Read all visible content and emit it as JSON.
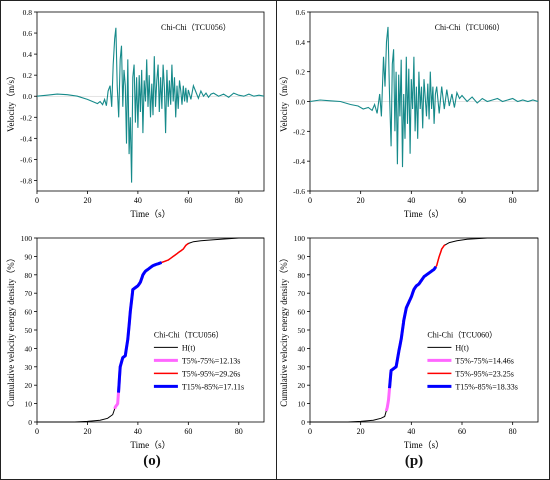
{
  "figure": {
    "panel_labels": {
      "left": "(o)",
      "right": "(p)"
    }
  },
  "chart_data": [
    {
      "id": "vel-tcu056",
      "type": "line",
      "title": "Chi-Chi（TCU056）",
      "xlabel": "Time（s）",
      "ylabel": "Velocity（m/s）",
      "xlim": [
        0,
        90
      ],
      "ylim": [
        -0.9,
        0.8
      ],
      "xticks": [
        0,
        20,
        40,
        60,
        80
      ],
      "yticks": [
        -0.8,
        -0.6,
        -0.4,
        -0.2,
        0.0,
        0.2,
        0.4,
        0.6,
        0.8
      ],
      "ytick_labels": [
        "-0.8",
        "-0.6",
        "-0.4",
        "-0.2",
        "0.0",
        "0.2",
        "0.4",
        "0.6",
        "0.8"
      ],
      "color": "#168a8a",
      "series": [
        {
          "x": [
            0,
            4,
            8,
            12,
            16,
            20,
            22,
            24,
            25,
            26,
            26.8,
            27.5,
            28.2,
            29,
            29.6,
            30.2,
            30.8,
            31.3,
            31.8,
            32.4,
            33,
            33.5,
            34,
            34.5,
            35,
            35.5,
            36,
            36.5,
            37,
            37.5,
            38,
            38.5,
            39,
            39.5,
            40,
            40.5,
            41,
            41.5,
            42,
            42.5,
            43,
            43.5,
            44,
            44.5,
            45,
            45.5,
            46,
            46.5,
            47,
            47.5,
            48,
            48.5,
            49,
            49.5,
            50,
            50.5,
            51,
            51.5,
            52,
            52.5,
            53,
            53.5,
            54,
            54.5,
            55,
            55.5,
            56,
            56.5,
            57,
            57.5,
            58,
            58.5,
            59,
            59.5,
            60,
            61,
            62,
            63,
            64,
            65,
            66,
            67,
            68,
            69,
            70,
            72,
            74,
            76,
            78,
            80,
            82,
            84,
            86,
            88,
            90
          ],
          "y": [
            0,
            0.01,
            0.02,
            0.015,
            0,
            -0.03,
            -0.05,
            -0.07,
            -0.05,
            -0.08,
            -0.03,
            -0.09,
            0.05,
            0.1,
            -0.1,
            0.3,
            0.55,
            0.65,
            0.1,
            -0.2,
            0.35,
            0.48,
            -0.1,
            0.25,
            0.1,
            -0.45,
            0.35,
            -0.55,
            -0.2,
            -0.82,
            0.18,
            0.3,
            -0.25,
            0.18,
            -0.3,
            0.2,
            -0.15,
            0.25,
            -0.35,
            0.15,
            -0.05,
            0.35,
            -0.1,
            0.2,
            -0.2,
            0.12,
            -0.18,
            0.38,
            -0.1,
            0.15,
            0.3,
            -0.15,
            0.18,
            -0.12,
            0.3,
            0.08,
            -0.35,
            0.25,
            -0.1,
            0.15,
            -0.08,
            0.3,
            -0.05,
            0.18,
            -0.2,
            0.1,
            -0.12,
            0.15,
            0.05,
            -0.08,
            0.1,
            -0.05,
            0.08,
            -0.06,
            0.06,
            -0.03,
            0.1,
            0.04,
            -0.02,
            0.05,
            0,
            0.03,
            -0.01,
            0.02,
            0.03,
            0,
            0.02,
            -0.01,
            0.03,
            0.01,
            0,
            0.02,
            0,
            0.01,
            0
          ]
        }
      ]
    },
    {
      "id": "vel-tcu060",
      "type": "line",
      "title": "Chi-Chi（TCU060）",
      "xlabel": "Time（s）",
      "ylabel": "Velocity（m/s）",
      "xlim": [
        0,
        90
      ],
      "ylim": [
        -0.6,
        0.6
      ],
      "xticks": [
        0,
        20,
        40,
        60,
        80
      ],
      "yticks": [
        -0.6,
        -0.4,
        -0.2,
        0.0,
        0.2,
        0.4,
        0.6
      ],
      "ytick_labels": [
        "-0.6",
        "-0.4",
        "-0.2",
        "0.0",
        "0.2",
        "0.4",
        "0.6"
      ],
      "color": "#168a8a",
      "series": [
        {
          "x": [
            0,
            4,
            8,
            12,
            16,
            19,
            21,
            23,
            24.5,
            25.5,
            26.5,
            27.5,
            28.2,
            29,
            29.6,
            30.2,
            30.8,
            31.4,
            32,
            32.5,
            33,
            33.5,
            34,
            34.5,
            35,
            35.5,
            36,
            36.5,
            37,
            37.5,
            38,
            38.5,
            39,
            39.5,
            40,
            40.5,
            41,
            41.5,
            42,
            42.5,
            43,
            43.5,
            44,
            44.5,
            45,
            45.5,
            46,
            46.5,
            47,
            47.5,
            48,
            48.5,
            49,
            49.5,
            50,
            51,
            52,
            53,
            54,
            55,
            56,
            57,
            58,
            59,
            60,
            62,
            64,
            66,
            68,
            70,
            72,
            74,
            76,
            78,
            80,
            82,
            84,
            86,
            88,
            90
          ],
          "y": [
            0,
            0.01,
            0.005,
            0,
            -0.02,
            -0.03,
            -0.05,
            -0.04,
            -0.06,
            -0.02,
            -0.08,
            0.05,
            -0.1,
            0.3,
            0.1,
            0.4,
            0.5,
            0.05,
            -0.3,
            0.25,
            0.35,
            -0.2,
            0.2,
            -0.42,
            0.18,
            -0.1,
            0.28,
            -0.44,
            0.05,
            -0.25,
            0.3,
            -0.15,
            0.22,
            -0.35,
            0.15,
            -0.05,
            0.3,
            -0.2,
            0.1,
            -0.25,
            0.2,
            -0.05,
            0.1,
            -0.18,
            0.15,
            0.02,
            -0.1,
            0.12,
            -0.12,
            0.2,
            -0.05,
            0.1,
            -0.15,
            0.05,
            0.1,
            -0.08,
            0.1,
            -0.05,
            0.08,
            -0.03,
            0.05,
            -0.04,
            0.06,
            0.02,
            0.04,
            0,
            0.03,
            -0.01,
            0.02,
            0,
            0.01,
            0.02,
            0,
            0.01,
            0.02,
            0,
            0.01,
            0,
            0.01,
            0
          ]
        }
      ]
    },
    {
      "id": "energy-tcu056",
      "type": "line",
      "xlabel": "Time（s）",
      "ylabel": "Cumulative velocity energy density（%）",
      "xlim": [
        0,
        90
      ],
      "ylim": [
        0,
        100
      ],
      "xticks": [
        0,
        20,
        40,
        60,
        80
      ],
      "yticks": [
        0,
        10,
        20,
        30,
        40,
        50,
        60,
        70,
        80,
        90,
        100
      ],
      "ytick_labels": [
        "0",
        "10",
        "20",
        "30",
        "40",
        "50",
        "60",
        "70",
        "80",
        "90",
        "100"
      ],
      "legend": {
        "title": "Chi-Chi（TCU056）",
        "position": "center-right",
        "entries": [
          {
            "label": "H(t)",
            "color": "#000000",
            "width": 1
          },
          {
            "label": "T5%-75%=12.13s",
            "color": "#ff66ff",
            "width": 3
          },
          {
            "label": "T5%-95%=29.26s",
            "color": "#ff0000",
            "width": 1.5
          },
          {
            "label": "T15%-85%=17.11s",
            "color": "#0000ff",
            "width": 3
          }
        ]
      },
      "series": [
        {
          "name": "H(t)",
          "x": [
            0,
            15,
            20,
            25,
            28,
            30,
            31,
            32,
            32.5,
            33,
            34,
            35,
            36,
            37,
            38,
            39,
            40,
            41,
            42,
            43,
            44,
            45,
            46,
            48,
            50,
            52,
            54,
            55,
            56,
            58,
            59,
            60,
            62,
            65,
            70,
            75,
            80,
            85,
            90
          ],
          "y": [
            0,
            0,
            0.3,
            1,
            2,
            4,
            8,
            10,
            20,
            30,
            35,
            36,
            45,
            60,
            72,
            73,
            74,
            76,
            80,
            82,
            83,
            84,
            85,
            86,
            87,
            88,
            90,
            91,
            92,
            94,
            96,
            97,
            98,
            98.5,
            99,
            99.5,
            100,
            100,
            100
          ]
        }
      ],
      "segments": [
        {
          "series": "T5%-75%",
          "color": "#ff66ff",
          "x_start": 30.8,
          "x_end": 42.9
        },
        {
          "series": "T5%-95%",
          "color": "#ff0000",
          "x_start": 30.8,
          "x_end": 60.1
        },
        {
          "series": "T15%-85%",
          "color": "#0000ff",
          "x_start": 32.3,
          "x_end": 49.4
        }
      ]
    },
    {
      "id": "energy-tcu060",
      "type": "line",
      "xlabel": "Time（s）",
      "ylabel": "Cumulative velocity energy density（%）",
      "xlim": [
        0,
        90
      ],
      "ylim": [
        0,
        100
      ],
      "xticks": [
        0,
        20,
        40,
        60,
        80
      ],
      "yticks": [
        0,
        10,
        20,
        30,
        40,
        50,
        60,
        70,
        80,
        90,
        100
      ],
      "ytick_labels": [
        "0",
        "10",
        "20",
        "30",
        "40",
        "50",
        "60",
        "70",
        "80",
        "90",
        "100"
      ],
      "legend": {
        "title": "Chi-Chi（TCU060）",
        "position": "center-right",
        "entries": [
          {
            "label": "H(t)",
            "color": "#000000",
            "width": 1
          },
          {
            "label": "T5%-75%=14.46s",
            "color": "#ff66ff",
            "width": 3
          },
          {
            "label": "T5%-95%=23.25s",
            "color": "#ff0000",
            "width": 1.5
          },
          {
            "label": "T15%-85%=18.33s",
            "color": "#0000ff",
            "width": 3
          }
        ]
      },
      "series": [
        {
          "name": "H(t)",
          "x": [
            0,
            15,
            20,
            25,
            28,
            29.5,
            30.5,
            31,
            31.5,
            32,
            33,
            34,
            35,
            36,
            37,
            38,
            39,
            40,
            41,
            42,
            43,
            44,
            45,
            46,
            47,
            48,
            49,
            50,
            51,
            52,
            53,
            55,
            58,
            62,
            66,
            70,
            75,
            80,
            85,
            90
          ],
          "y": [
            0,
            0,
            0.3,
            1,
            2,
            3,
            8,
            12,
            20,
            28,
            29,
            30,
            38,
            45,
            55,
            62,
            65,
            68,
            72,
            74,
            75,
            77,
            79,
            80,
            81,
            82,
            83,
            85,
            90,
            94,
            96,
            97.5,
            98.5,
            99.3,
            99.7,
            100,
            100,
            100,
            100,
            100
          ]
        }
      ],
      "segments": [
        {
          "series": "T5%-75%",
          "color": "#ff66ff",
          "x_start": 30.1,
          "x_end": 44.6
        },
        {
          "series": "T5%-95%",
          "color": "#ff0000",
          "x_start": 30.1,
          "x_end": 53.4
        },
        {
          "series": "T15%-85%",
          "color": "#0000ff",
          "x_start": 31.4,
          "x_end": 49.7
        }
      ]
    }
  ]
}
